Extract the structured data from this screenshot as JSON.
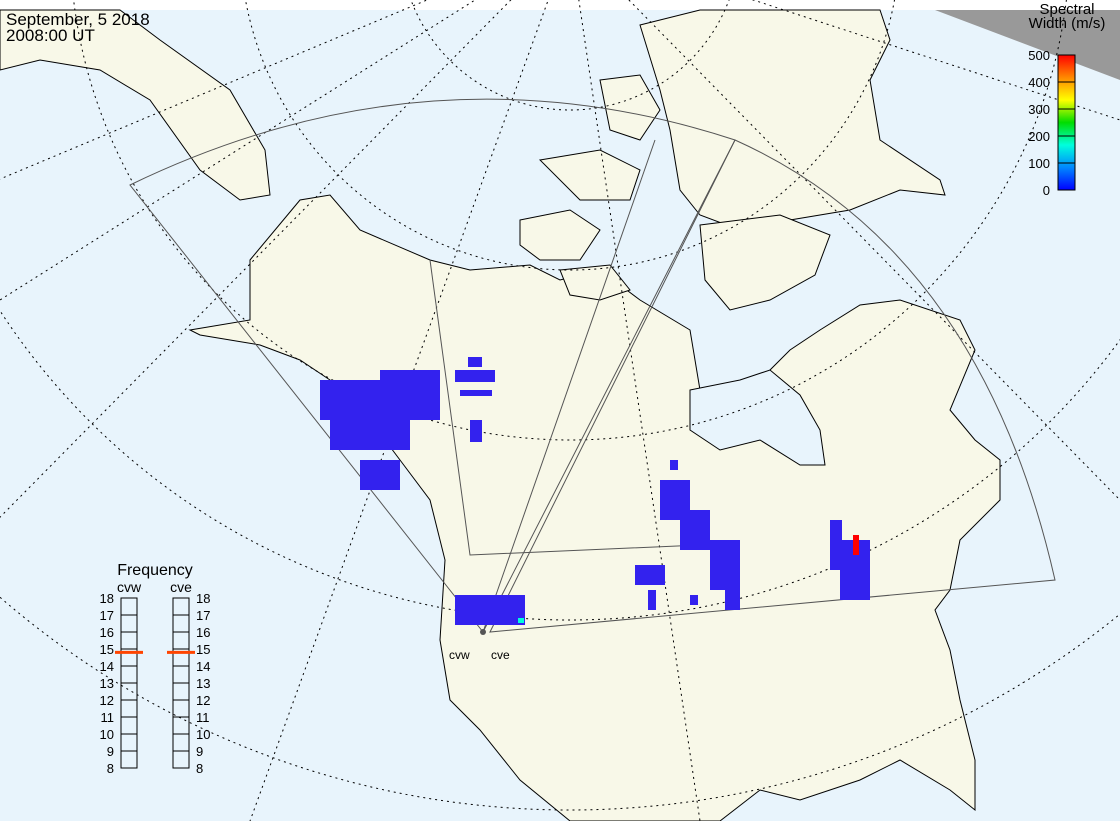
{
  "header": {
    "date": "September, 5 2018",
    "time": "2008:00 UT"
  },
  "colorbar": {
    "title_line1": "Spectral",
    "title_line2": "Width (m/s)",
    "ticks": [
      "500",
      "400",
      "300",
      "200",
      "100",
      "0"
    ],
    "range": [
      0,
      500
    ],
    "colors": [
      "#ff0000",
      "#ff8800",
      "#ffff00",
      "#00dd00",
      "#00ffdd",
      "#0088ff",
      "#0000ff"
    ]
  },
  "frequency": {
    "title": "Frequency",
    "unit_range": [
      8,
      18
    ],
    "ticks": [
      "18",
      "17",
      "16",
      "15",
      "14",
      "13",
      "12",
      "11",
      "10",
      "9",
      "8"
    ],
    "radars": [
      {
        "name": "cvw",
        "value_mhz": 14.8
      },
      {
        "name": "cve",
        "value_mhz": 14.8
      }
    ],
    "marker_color": "#ff4400"
  },
  "radars": [
    {
      "label": "cvw"
    },
    {
      "label": "cve"
    }
  ],
  "colors": {
    "ocean": "#e8f4fc",
    "land": "#f8f8e8",
    "scatter": "#3322ee",
    "outside": "#999999"
  }
}
